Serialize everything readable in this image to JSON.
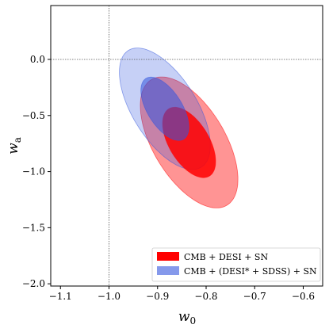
{
  "chart_data": {
    "type": "contour",
    "xlabel": "w_0",
    "ylabel": "w_a",
    "xlim": [
      -1.12,
      -0.56
    ],
    "ylim": [
      -2.02,
      0.48
    ],
    "xticks": [
      -1.1,
      -1.0,
      -0.9,
      -0.8,
      -0.7,
      -0.6
    ],
    "xtick_labels": [
      "−1.1",
      "−1.0",
      "−0.9",
      "−0.8",
      "−0.7",
      "−0.6"
    ],
    "yticks": [
      0.0,
      -0.5,
      -1.0,
      -1.5,
      -2.0
    ],
    "ytick_labels": [
      "0.0",
      "−0.5",
      "−1.0",
      "−1.5",
      "−2.0"
    ],
    "reference_lines": {
      "w0": -1.0,
      "wa": 0.0
    },
    "legend_position": "lower-right",
    "series": [
      {
        "name": "CMB + DESI + SN",
        "color": "#ff0000",
        "center": [
          -0.835,
          -0.74
        ],
        "contours": [
          {
            "level": "68%",
            "semi_axis_w0": 0.075,
            "semi_axis_wa": 0.3,
            "angle_deg": -59,
            "opacity": 0.85
          },
          {
            "level": "95%",
            "semi_axis_w0": 0.135,
            "semi_axis_wa": 0.56,
            "angle_deg": -59,
            "opacity": 0.42
          }
        ]
      },
      {
        "name": "CMB + (DESI* + SDSS) + SN",
        "color": "#3355dd",
        "center": [
          -0.885,
          -0.44
        ],
        "contours": [
          {
            "level": "68%",
            "semi_axis_w0": 0.065,
            "semi_axis_wa": 0.27,
            "angle_deg": -58,
            "opacity": 0.55
          },
          {
            "level": "95%",
            "semi_axis_w0": 0.12,
            "semi_axis_wa": 0.52,
            "angle_deg": -58,
            "opacity": 0.28
          }
        ]
      }
    ]
  }
}
